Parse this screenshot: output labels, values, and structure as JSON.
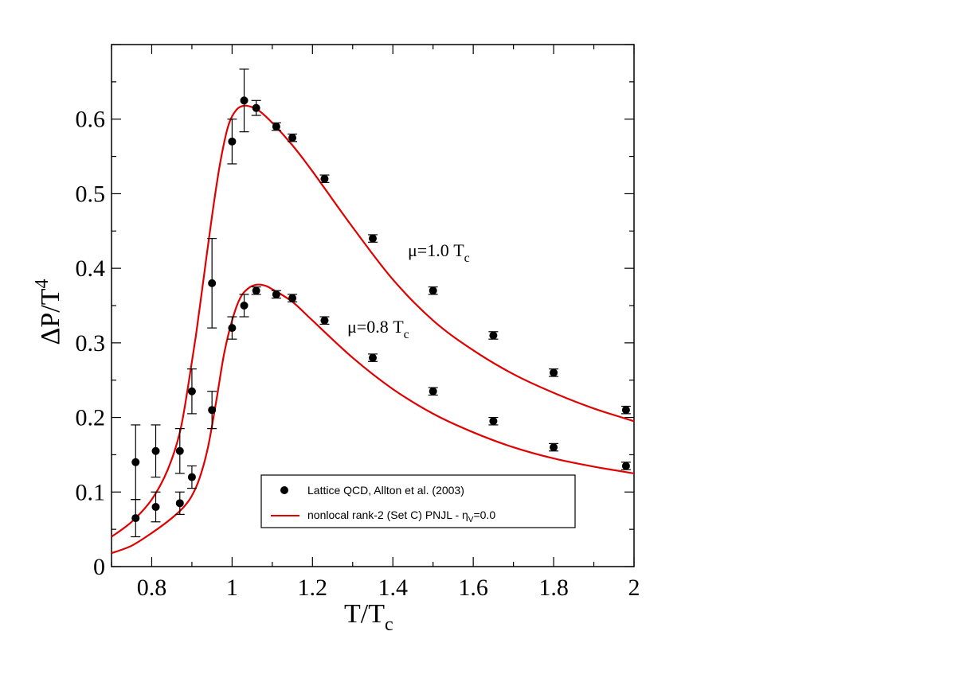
{
  "chart_data": {
    "type": "scatter",
    "title": "",
    "xlabel": {
      "main": "T/T",
      "sub": "c"
    },
    "ylabel": {
      "main": "ΔP/T",
      "sup": "4"
    },
    "xlim": [
      0.7,
      2.0
    ],
    "ylim": [
      0.0,
      0.7
    ],
    "x_ticks": [
      {
        "value": 0.8,
        "label": "0.8"
      },
      {
        "value": 1.0,
        "label": "1"
      },
      {
        "value": 1.2,
        "label": "1.2"
      },
      {
        "value": 1.4,
        "label": "1.4"
      },
      {
        "value": 1.6,
        "label": "1.6"
      },
      {
        "value": 1.8,
        "label": "1.8"
      },
      {
        "value": 2.0,
        "label": "2"
      }
    ],
    "y_ticks": [
      {
        "value": 0.0,
        "label": "0"
      },
      {
        "value": 0.1,
        "label": "0.1"
      },
      {
        "value": 0.2,
        "label": "0.2"
      },
      {
        "value": 0.3,
        "label": "0.3"
      },
      {
        "value": 0.4,
        "label": "0.4"
      },
      {
        "value": 0.5,
        "label": "0.5"
      },
      {
        "value": 0.6,
        "label": "0.6"
      }
    ],
    "grid": false,
    "legend_position": "bottom-right",
    "legend": [
      {
        "label": "Lattice QCD, Allton et al. (2003)",
        "marker": "circle",
        "color": "#000000"
      },
      {
        "label_main": "nonlocal rank-2 (Set C) PNJL - η",
        "label_sub": "V",
        "label_tail": "=0.0",
        "marker": "line",
        "color": "#e00000"
      }
    ],
    "annotations": [
      {
        "main": "μ=1.0 T",
        "sub": "c",
        "at": [
          1.44,
          0.42
        ]
      },
      {
        "main": "μ=0.8 T",
        "sub": "c",
        "at": [
          1.29,
          0.315
        ]
      }
    ],
    "series": [
      {
        "name": "Lattice QCD μ=1.0 T_c",
        "kind": "points",
        "color": "#000000",
        "points": [
          {
            "x": 0.76,
            "y": 0.14,
            "err": 0.05
          },
          {
            "x": 0.81,
            "y": 0.155,
            "err": 0.035
          },
          {
            "x": 0.87,
            "y": 0.155,
            "err": 0.03
          },
          {
            "x": 0.9,
            "y": 0.235,
            "err": 0.03
          },
          {
            "x": 0.95,
            "y": 0.38,
            "err": 0.06
          },
          {
            "x": 1.0,
            "y": 0.57,
            "err": 0.03
          },
          {
            "x": 1.03,
            "y": 0.625,
            "err": 0.042
          },
          {
            "x": 1.06,
            "y": 0.615,
            "err": 0.01
          },
          {
            "x": 1.11,
            "y": 0.59,
            "err": 0.005
          },
          {
            "x": 1.15,
            "y": 0.575,
            "err": 0.005
          },
          {
            "x": 1.23,
            "y": 0.52,
            "err": 0.005
          },
          {
            "x": 1.35,
            "y": 0.44,
            "err": 0.005
          },
          {
            "x": 1.5,
            "y": 0.37,
            "err": 0.005
          },
          {
            "x": 1.65,
            "y": 0.31,
            "err": 0.005
          },
          {
            "x": 1.8,
            "y": 0.26,
            "err": 0.005
          },
          {
            "x": 1.98,
            "y": 0.21,
            "err": 0.005
          }
        ]
      },
      {
        "name": "Lattice QCD μ=0.8 T_c",
        "kind": "points",
        "color": "#000000",
        "points": [
          {
            "x": 0.76,
            "y": 0.065,
            "err": 0.025
          },
          {
            "x": 0.81,
            "y": 0.08,
            "err": 0.02
          },
          {
            "x": 0.87,
            "y": 0.085,
            "err": 0.015
          },
          {
            "x": 0.9,
            "y": 0.12,
            "err": 0.015
          },
          {
            "x": 0.95,
            "y": 0.21,
            "err": 0.025
          },
          {
            "x": 1.0,
            "y": 0.32,
            "err": 0.015
          },
          {
            "x": 1.03,
            "y": 0.35,
            "err": 0.015
          },
          {
            "x": 1.06,
            "y": 0.37,
            "err": 0.005
          },
          {
            "x": 1.11,
            "y": 0.365,
            "err": 0.005
          },
          {
            "x": 1.15,
            "y": 0.36,
            "err": 0.005
          },
          {
            "x": 1.23,
            "y": 0.33,
            "err": 0.005
          },
          {
            "x": 1.35,
            "y": 0.28,
            "err": 0.005
          },
          {
            "x": 1.5,
            "y": 0.235,
            "err": 0.005
          },
          {
            "x": 1.65,
            "y": 0.195,
            "err": 0.005
          },
          {
            "x": 1.8,
            "y": 0.16,
            "err": 0.005
          },
          {
            "x": 1.98,
            "y": 0.135,
            "err": 0.005
          }
        ]
      },
      {
        "name": "PNJL μ=1.0 T_c",
        "kind": "line",
        "color": "#e00000",
        "x": [
          0.7,
          0.75,
          0.8,
          0.84,
          0.87,
          0.89,
          0.91,
          0.93,
          0.95,
          0.97,
          0.99,
          1.01,
          1.03,
          1.05,
          1.07,
          1.1,
          1.15,
          1.2,
          1.3,
          1.4,
          1.5,
          1.6,
          1.7,
          1.8,
          1.9,
          2.0
        ],
        "y": [
          0.04,
          0.06,
          0.09,
          0.13,
          0.18,
          0.24,
          0.31,
          0.39,
          0.47,
          0.54,
          0.59,
          0.612,
          0.618,
          0.616,
          0.61,
          0.595,
          0.565,
          0.53,
          0.455,
          0.385,
          0.33,
          0.29,
          0.258,
          0.233,
          0.212,
          0.195
        ]
      },
      {
        "name": "PNJL μ=0.8 T_c",
        "kind": "line",
        "color": "#e00000",
        "x": [
          0.7,
          0.75,
          0.8,
          0.85,
          0.88,
          0.9,
          0.92,
          0.94,
          0.96,
          0.98,
          1.0,
          1.02,
          1.04,
          1.06,
          1.08,
          1.1,
          1.15,
          1.2,
          1.3,
          1.4,
          1.5,
          1.6,
          1.7,
          1.8,
          1.9,
          2.0
        ],
        "y": [
          0.018,
          0.028,
          0.045,
          0.065,
          0.08,
          0.095,
          0.12,
          0.16,
          0.22,
          0.285,
          0.33,
          0.36,
          0.373,
          0.378,
          0.377,
          0.372,
          0.355,
          0.33,
          0.28,
          0.238,
          0.205,
          0.18,
          0.16,
          0.145,
          0.134,
          0.125
        ]
      }
    ]
  }
}
